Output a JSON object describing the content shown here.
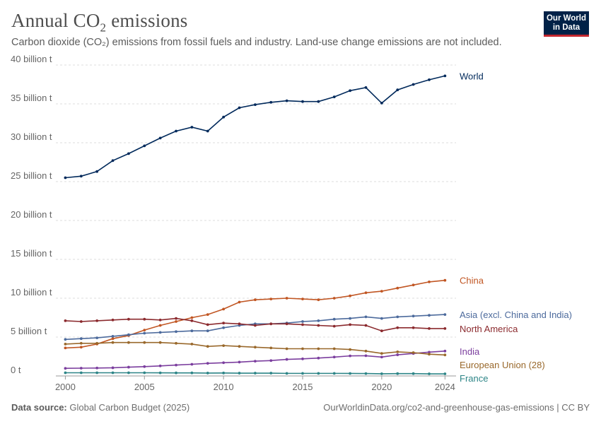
{
  "header": {
    "title_main": "Annual CO",
    "title_sub": "2",
    "title_end": " emissions",
    "subtitle": "Carbon dioxide (CO₂) emissions from fossil fuels and industry. Land-use change emissions are not included.",
    "logo_line1": "Our World",
    "logo_line2": "in Data"
  },
  "footer": {
    "source_label": "Data source:",
    "source_value": " Global Carbon Budget (2025)",
    "credit": "OurWorldinData.org/co2-and-greenhouse-gas-emissions | CC BY"
  },
  "chart_data": {
    "type": "line",
    "x": [
      2000,
      2001,
      2002,
      2003,
      2004,
      2005,
      2006,
      2007,
      2008,
      2009,
      2010,
      2011,
      2012,
      2013,
      2014,
      2015,
      2016,
      2017,
      2018,
      2019,
      2020,
      2021,
      2022,
      2023,
      2024
    ],
    "xlim": [
      1999.4,
      2024.7
    ],
    "ylim": [
      0,
      40
    ],
    "y_ticks": [
      0,
      5,
      10,
      15,
      20,
      25,
      30,
      35,
      40
    ],
    "y_tick_labels": [
      "0 t",
      "5 billion t",
      "10 billion t",
      "15 billion t",
      "20 billion t",
      "25 billion t",
      "30 billion t",
      "35 billion t",
      "40 billion t"
    ],
    "x_ticks": [
      2000,
      2005,
      2010,
      2015,
      2020,
      2024
    ],
    "x_tick_labels": [
      "2000",
      "2005",
      "2010",
      "2015",
      "2020",
      "2024"
    ],
    "grid": "horizontal-dashed",
    "legend": "right-inline",
    "series": [
      {
        "name": "World",
        "color": "#00295b",
        "values": [
          25.5,
          25.7,
          26.3,
          27.7,
          28.6,
          29.6,
          30.6,
          31.5,
          32.0,
          31.5,
          33.3,
          34.5,
          34.9,
          35.2,
          35.4,
          35.3,
          35.3,
          35.9,
          36.7,
          37.1,
          35.1,
          36.8,
          37.5,
          38.1,
          38.6
        ]
      },
      {
        "name": "China",
        "color": "#c15623",
        "values": [
          3.6,
          3.7,
          4.1,
          4.8,
          5.2,
          5.9,
          6.5,
          7.0,
          7.5,
          7.9,
          8.6,
          9.5,
          9.8,
          9.9,
          10.0,
          9.9,
          9.8,
          10.0,
          10.3,
          10.7,
          10.9,
          11.3,
          11.7,
          12.1,
          12.3
        ]
      },
      {
        "name": "Asia (excl. China and India)",
        "color": "#4c6a9c",
        "values": [
          4.7,
          4.8,
          4.9,
          5.1,
          5.3,
          5.5,
          5.6,
          5.7,
          5.8,
          5.8,
          6.2,
          6.5,
          6.7,
          6.7,
          6.8,
          7.0,
          7.1,
          7.3,
          7.4,
          7.6,
          7.4,
          7.6,
          7.7,
          7.8,
          7.9
        ]
      },
      {
        "name": "North America",
        "color": "#8b2a2e",
        "values": [
          7.1,
          7.0,
          7.1,
          7.2,
          7.3,
          7.3,
          7.2,
          7.4,
          7.1,
          6.6,
          6.8,
          6.7,
          6.5,
          6.7,
          6.7,
          6.6,
          6.5,
          6.4,
          6.6,
          6.5,
          5.8,
          6.2,
          6.2,
          6.1,
          6.1
        ]
      },
      {
        "name": "India",
        "color": "#7b3e9e",
        "values": [
          0.98,
          1.0,
          1.02,
          1.05,
          1.13,
          1.2,
          1.29,
          1.4,
          1.5,
          1.62,
          1.7,
          1.78,
          1.9,
          1.98,
          2.13,
          2.2,
          2.3,
          2.43,
          2.58,
          2.6,
          2.43,
          2.72,
          2.89,
          3.06,
          3.2
        ]
      },
      {
        "name": "European Union (28)",
        "color": "#99682b",
        "values": [
          4.1,
          4.2,
          4.2,
          4.3,
          4.3,
          4.3,
          4.3,
          4.2,
          4.1,
          3.8,
          3.9,
          3.8,
          3.7,
          3.6,
          3.5,
          3.5,
          3.5,
          3.5,
          3.4,
          3.2,
          2.9,
          3.1,
          3.0,
          2.8,
          2.7
        ]
      },
      {
        "name": "France",
        "color": "#2d8587",
        "values": [
          0.41,
          0.41,
          0.41,
          0.41,
          0.41,
          0.41,
          0.4,
          0.39,
          0.39,
          0.37,
          0.38,
          0.36,
          0.36,
          0.36,
          0.33,
          0.33,
          0.33,
          0.33,
          0.32,
          0.31,
          0.28,
          0.3,
          0.3,
          0.27,
          0.27
        ]
      }
    ]
  }
}
